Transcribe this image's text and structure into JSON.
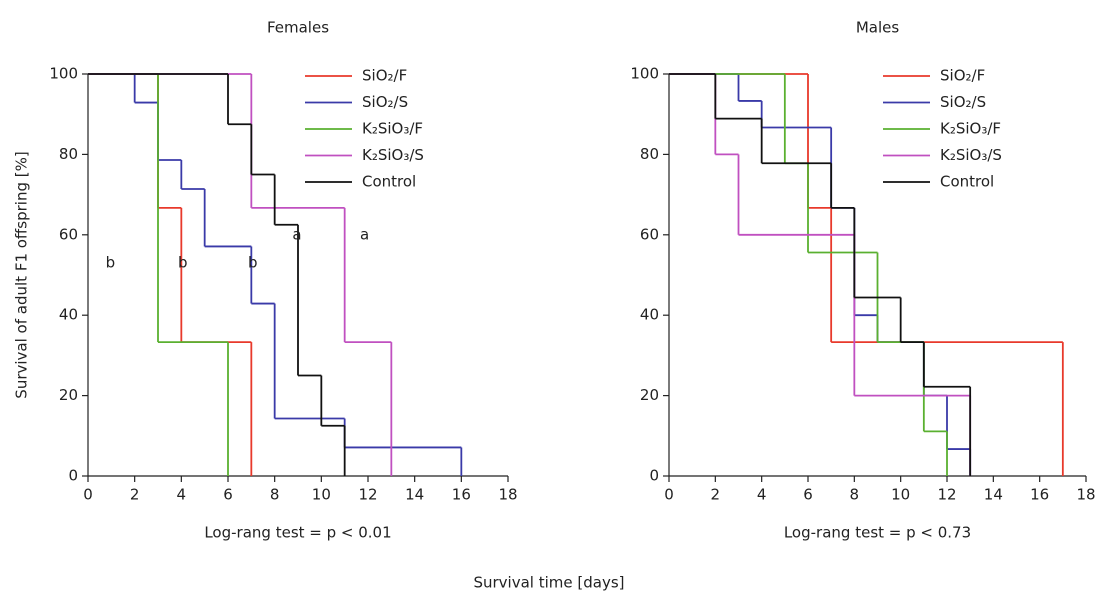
{
  "chart_data": [
    {
      "type": "step",
      "title": "Females",
      "ylabel": "Survival of adult F1 offspring [%]",
      "subtitle": "Log-rang test = p < 0.01",
      "xlim": [
        0,
        18
      ],
      "xticks": [
        0,
        2,
        4,
        6,
        8,
        10,
        12,
        14,
        16,
        18
      ],
      "ylim": [
        0,
        100
      ],
      "yticks": [
        0,
        20,
        40,
        60,
        80,
        100
      ],
      "annotations": [
        "b",
        "b",
        "b",
        "a",
        "a"
      ],
      "series": [
        {
          "name": "SiO₂/F",
          "color": "#e8392b",
          "x": [
            0,
            3,
            4,
            7
          ],
          "values": [
            100,
            66.7,
            33.3,
            0
          ]
        },
        {
          "name": "SiO₂/S",
          "color": "#3a3aa8",
          "x": [
            0,
            2,
            3,
            4,
            5,
            7,
            8,
            11,
            16
          ],
          "values": [
            100,
            92.9,
            78.6,
            71.4,
            57.1,
            42.9,
            14.3,
            7.1,
            0
          ]
        },
        {
          "name": "K₂SiO₃/F",
          "color": "#5ab030",
          "x": [
            0,
            3,
            6
          ],
          "values": [
            100,
            33.3,
            0
          ]
        },
        {
          "name": "K₂SiO₃/S",
          "color": "#c050c0",
          "x": [
            0,
            7,
            11,
            13
          ],
          "values": [
            100,
            66.7,
            33.3,
            0
          ]
        },
        {
          "name": "Control",
          "color": "#111111",
          "x": [
            0,
            6,
            7,
            8,
            9,
            10,
            11
          ],
          "values": [
            100,
            87.5,
            75,
            62.5,
            25,
            12.5,
            0
          ]
        }
      ]
    },
    {
      "type": "step",
      "title": "Males",
      "subtitle": "Log-rang test = p < 0.73",
      "xlim": [
        0,
        18
      ],
      "xticks": [
        0,
        2,
        4,
        6,
        8,
        10,
        12,
        14,
        16,
        18
      ],
      "ylim": [
        0,
        100
      ],
      "yticks": [
        0,
        20,
        40,
        60,
        80,
        100
      ],
      "series": [
        {
          "name": "SiO₂/F",
          "color": "#e8392b",
          "x": [
            0,
            6,
            7,
            17
          ],
          "values": [
            100,
            66.7,
            33.3,
            0
          ]
        },
        {
          "name": "SiO₂/S",
          "color": "#3a3aa8",
          "x": [
            0,
            3,
            4,
            7,
            8,
            9,
            11,
            12,
            13
          ],
          "values": [
            100,
            93.3,
            86.7,
            66.7,
            40,
            33.3,
            20,
            6.7,
            0
          ]
        },
        {
          "name": "K₂SiO₃/F",
          "color": "#5ab030",
          "x": [
            0,
            5,
            6,
            9,
            11,
            12
          ],
          "values": [
            100,
            77.8,
            55.6,
            33.3,
            11.1,
            0
          ]
        },
        {
          "name": "K₂SiO₃/S",
          "color": "#c050c0",
          "x": [
            0,
            2,
            3,
            8,
            13
          ],
          "values": [
            100,
            80,
            60,
            20,
            0
          ]
        },
        {
          "name": "Control",
          "color": "#111111",
          "x": [
            0,
            2,
            4,
            7,
            8,
            10,
            11,
            13
          ],
          "values": [
            100,
            88.9,
            77.8,
            66.7,
            44.4,
            33.3,
            22.2,
            0
          ]
        }
      ]
    }
  ],
  "xlabel": "Survival time [days]"
}
